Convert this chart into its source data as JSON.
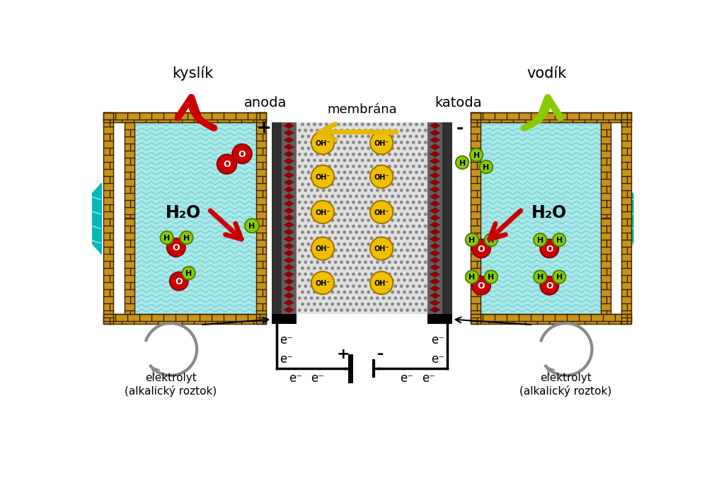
{
  "bg_color": "#ffffff",
  "kyslík_label": "kyslík",
  "vodík_label": "vodík",
  "anoda_label": "anoda",
  "katoda_label": "katoda",
  "membrana_label": "membrána",
  "plus_label": "+",
  "minus_label": "-",
  "h2o_label": "H₂O",
  "elektrolyt_label": "elektrolyt\n(alkalický roztok)",
  "cyan_fill": "#aae8e8",
  "brick_color": "#c8941a",
  "brick_dark": "#3a2200",
  "red_color": "#cc0000",
  "green_color": "#88cc00",
  "yellow_color": "#e8b800",
  "gray_color": "#808080",
  "teal_color": "#00b8b8",
  "dark_gray": "#444444",
  "oh_yellow": "#f0c000",
  "oh_border": "#b08000"
}
